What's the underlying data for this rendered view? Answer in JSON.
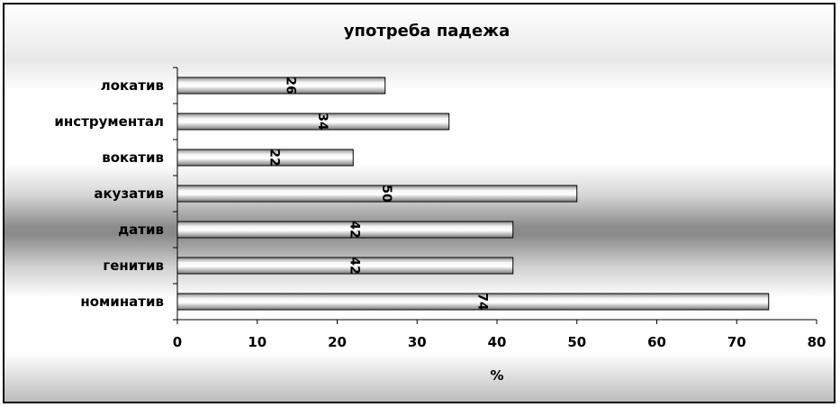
{
  "chart_data": {
    "type": "bar",
    "orientation": "horizontal",
    "title": "употреба падежа",
    "xlabel": "%",
    "ylabel": "",
    "categories": [
      "локатив",
      "инструментал",
      "вокатив",
      "акузатив",
      "датив",
      "генитив",
      "номинатив"
    ],
    "values": [
      26,
      34,
      22,
      50,
      42,
      42,
      74
    ],
    "xlim": [
      0,
      80
    ],
    "x_ticks": [
      0,
      10,
      20,
      30,
      40,
      50,
      60,
      70,
      80
    ],
    "data_labels": true,
    "grid": false,
    "legend": "none",
    "bar_color": "#e6e6e6",
    "bar_edge_color": "#000000"
  }
}
